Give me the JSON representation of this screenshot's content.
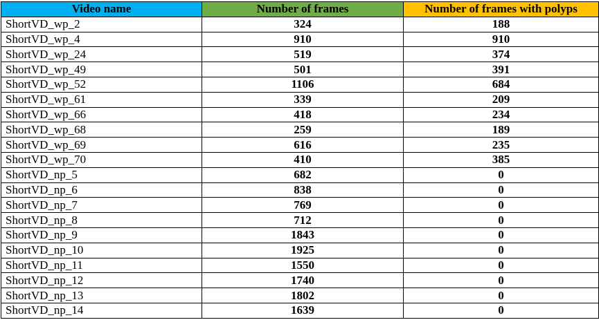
{
  "table": {
    "headers": [
      {
        "label": "Video name",
        "bg": "#00B0F0"
      },
      {
        "label": "Number of frames",
        "bg": "#70AD47"
      },
      {
        "label": "Number of frames with polyps",
        "bg": "#FFC000"
      }
    ],
    "rows": [
      [
        "ShortVD_wp_2",
        "324",
        "188"
      ],
      [
        "ShortVD_wp_4",
        "910",
        "910"
      ],
      [
        "ShortVD_wp_24",
        "519",
        "374"
      ],
      [
        "ShortVD_wp_49",
        "501",
        "391"
      ],
      [
        "ShortVD_wp_52",
        "1106",
        "684"
      ],
      [
        "ShortVD_wp_61",
        "339",
        "209"
      ],
      [
        "ShortVD_wp_66",
        "418",
        "234"
      ],
      [
        "ShortVD_wp_68",
        "259",
        "189"
      ],
      [
        "ShortVD_wp_69",
        "616",
        "235"
      ],
      [
        "ShortVD_wp_70",
        "410",
        "385"
      ],
      [
        "ShortVD_np_5",
        "682",
        "0"
      ],
      [
        "ShortVD_np_6",
        "838",
        "0"
      ],
      [
        "ShortVD_np_7",
        "769",
        "0"
      ],
      [
        "ShortVD_np_8",
        "712",
        "0"
      ],
      [
        "ShortVD_np_9",
        "1843",
        "0"
      ],
      [
        "ShortVD_np_10",
        "1925",
        "0"
      ],
      [
        "ShortVD_np_11",
        "1550",
        "0"
      ],
      [
        "ShortVD_np_12",
        "1740",
        "0"
      ],
      [
        "ShortVD_np_13",
        "1802",
        "0"
      ],
      [
        "ShortVD_np_14",
        "1639",
        "0"
      ]
    ]
  }
}
